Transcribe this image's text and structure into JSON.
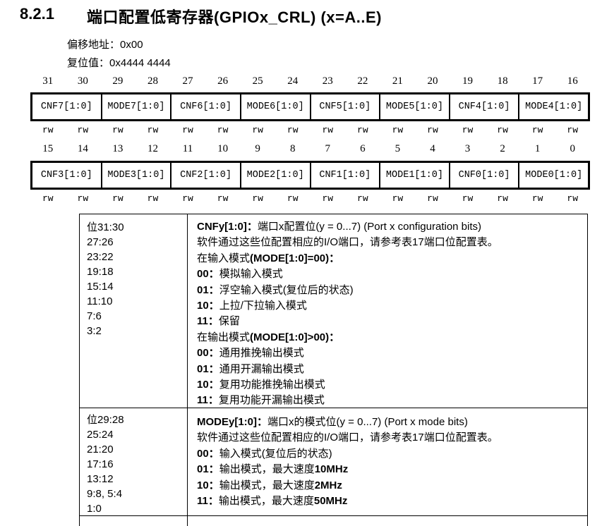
{
  "header": {
    "section_number": "8.2.1",
    "title": "端口配置低寄存器(GPIOx_CRL) (x=A..E)"
  },
  "meta": {
    "offset_label": "偏移地址：",
    "offset_value": "0x00",
    "reset_label": "复位值：",
    "reset_value": "0x4444 4444"
  },
  "register_diagram": {
    "high_word": {
      "bit_numbers": [
        "31",
        "30",
        "29",
        "28",
        "27",
        "26",
        "25",
        "24",
        "23",
        "22",
        "21",
        "20",
        "19",
        "18",
        "17",
        "16"
      ],
      "fields": [
        "CNF7[1:0]",
        "MODE7[1:0]",
        "CNF6[1:0]",
        "MODE6[1:0]",
        "CNF5[1:0]",
        "MODE5[1:0]",
        "CNF4[1:0]",
        "MODE4[1:0]"
      ],
      "access": [
        "rw",
        "rw",
        "rw",
        "rw",
        "rw",
        "rw",
        "rw",
        "rw",
        "rw",
        "rw",
        "rw",
        "rw",
        "rw",
        "rw",
        "rw",
        "rw"
      ]
    },
    "low_word": {
      "bit_numbers": [
        "15",
        "14",
        "13",
        "12",
        "11",
        "10",
        "9",
        "8",
        "7",
        "6",
        "5",
        "4",
        "3",
        "2",
        "1",
        "0"
      ],
      "fields": [
        "CNF3[1:0]",
        "MODE3[1:0]",
        "CNF2[1:0]",
        "MODE2[1:0]",
        "CNF1[1:0]",
        "MODE1[1:0]",
        "CNF0[1:0]",
        "MODE0[1:0]"
      ],
      "access": [
        "rw",
        "rw",
        "rw",
        "rw",
        "rw",
        "rw",
        "rw",
        "rw",
        "rw",
        "rw",
        "rw",
        "rw",
        "rw",
        "rw",
        "rw",
        "rw"
      ]
    }
  },
  "description_table": {
    "rows": [
      {
        "bit_ranges": [
          "位31:30",
          "27:26",
          "23:22",
          "19:18",
          "15:14",
          "11:10",
          "7:6",
          "3:2"
        ],
        "lines": [
          [
            {
              "t": "CNFy[1:0]：",
              "b": true
            },
            {
              "t": "端口x配置位(y = 0...7) (Port x configuration bits)",
              "b": false
            }
          ],
          [
            {
              "t": "软件通过这些位配置相应的I/O端口，请参考表17端口位配置表。",
              "b": false
            }
          ],
          [
            {
              "t": "在输入模式",
              "b": false
            },
            {
              "t": "(MODE[1:0]=00)：",
              "b": true
            }
          ],
          [
            {
              "t": "00：",
              "b": true
            },
            {
              "t": "模拟输入模式",
              "b": false
            }
          ],
          [
            {
              "t": "01：",
              "b": true
            },
            {
              "t": "浮空输入模式(复位后的状态)",
              "b": false
            }
          ],
          [
            {
              "t": "10：",
              "b": true
            },
            {
              "t": "上拉/下拉输入模式",
              "b": false
            }
          ],
          [
            {
              "t": "11：",
              "b": true
            },
            {
              "t": "保留",
              "b": false
            }
          ],
          [
            {
              "t": "在输出模式",
              "b": false
            },
            {
              "t": "(MODE[1:0]>00)：",
              "b": true
            }
          ],
          [
            {
              "t": "00：",
              "b": true
            },
            {
              "t": "通用推挽输出模式",
              "b": false
            }
          ],
          [
            {
              "t": "01：",
              "b": true
            },
            {
              "t": "通用开漏输出模式",
              "b": false
            }
          ],
          [
            {
              "t": "10：",
              "b": true
            },
            {
              "t": "复用功能推挽输出模式",
              "b": false
            }
          ],
          [
            {
              "t": "11：",
              "b": true
            },
            {
              "t": "复用功能开漏输出模式",
              "b": false
            }
          ]
        ]
      },
      {
        "bit_ranges": [
          "位29:28",
          "25:24",
          "21:20",
          "17:16",
          "13:12",
          "9:8, 5:4",
          "1:0"
        ],
        "lines": [
          [
            {
              "t": "MODEy[1:0]：",
              "b": true
            },
            {
              "t": "端口x的模式位(y = 0...7) (Port x mode bits)",
              "b": false
            }
          ],
          [
            {
              "t": "软件通过这些位配置相应的I/O端口，请参考表17端口位配置表。",
              "b": false
            }
          ],
          [
            {
              "t": "00：",
              "b": true
            },
            {
              "t": "输入模式(复位后的状态)",
              "b": false
            }
          ],
          [
            {
              "t": "01：",
              "b": true
            },
            {
              "t": "输出模式，最大速度",
              "b": false
            },
            {
              "t": "10MHz",
              "b": true
            }
          ],
          [
            {
              "t": "10：",
              "b": true
            },
            {
              "t": "输出模式，最大速度",
              "b": false
            },
            {
              "t": "2MHz",
              "b": true
            }
          ],
          [
            {
              "t": "11：",
              "b": true
            },
            {
              "t": "输出模式，最大速度",
              "b": false
            },
            {
              "t": "50MHz",
              "b": true
            }
          ]
        ]
      }
    ]
  }
}
